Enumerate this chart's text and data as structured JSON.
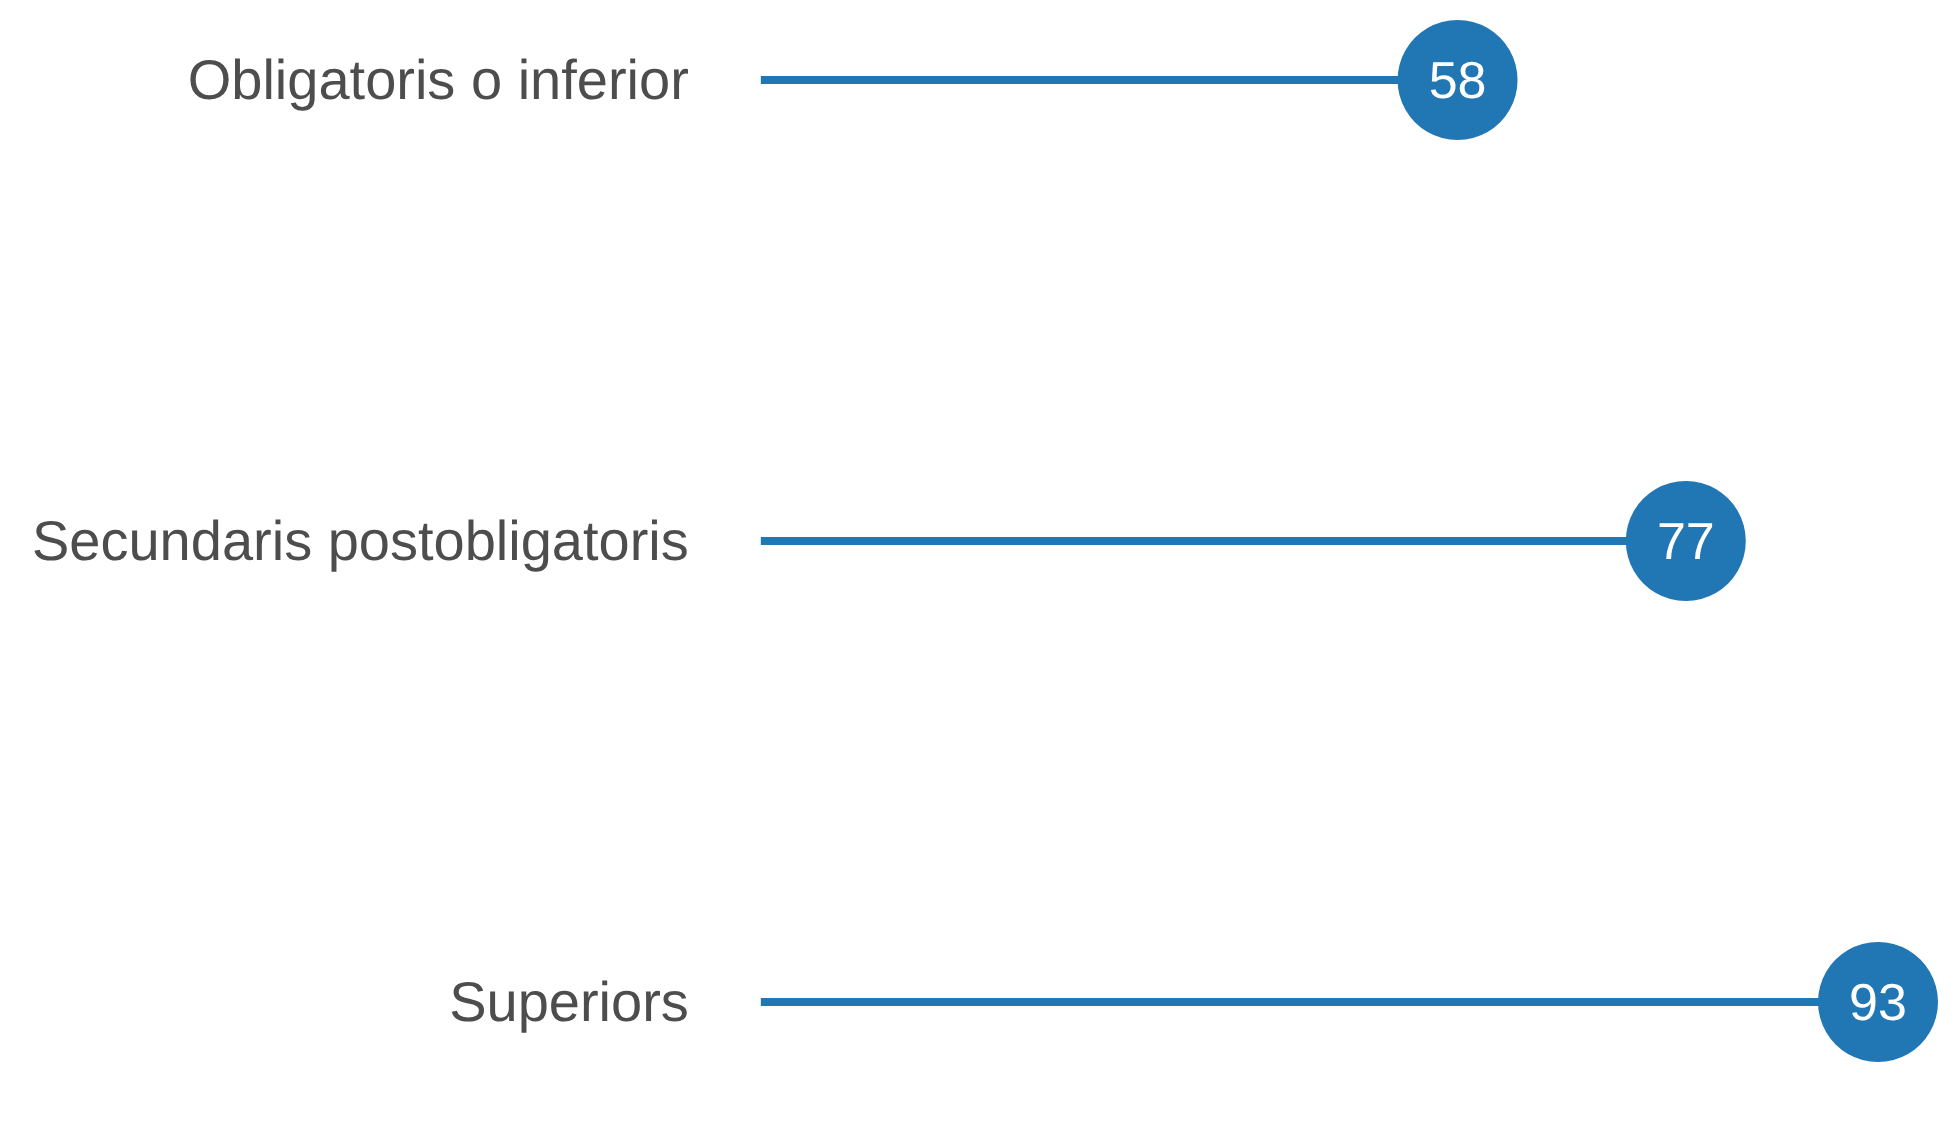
{
  "chart_data": {
    "type": "lollipop",
    "orientation": "horizontal",
    "categories": [
      "Obligatoris o inferior",
      "Secundaris postobligatoris",
      "Superiors"
    ],
    "values": [
      58,
      77,
      93
    ],
    "color": "#2077b4",
    "data_labels": true
  }
}
